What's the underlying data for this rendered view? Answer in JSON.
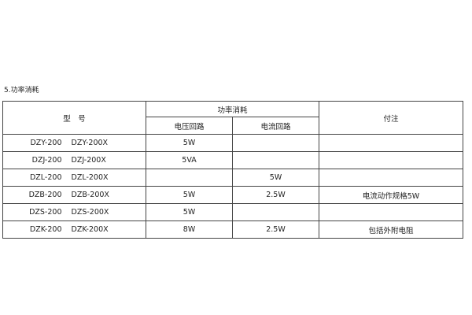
{
  "section_title": "5.功率消耗",
  "table": {
    "headers": {
      "model": "型　号",
      "power": "功率消耗",
      "voltage_circuit": "电压回路",
      "current_circuit": "电流回路",
      "remark": "付注"
    },
    "rows": [
      {
        "model_a": "DZY-200",
        "model_b": "DZY-200X",
        "voltage": "5W",
        "current": "",
        "remark": ""
      },
      {
        "model_a": "DZJ-200",
        "model_b": "DZJ-200X",
        "voltage": "5VA",
        "current": "",
        "remark": ""
      },
      {
        "model_a": "DZL-200",
        "model_b": "DZL-200X",
        "voltage": "",
        "current": "5W",
        "remark": ""
      },
      {
        "model_a": "DZB-200",
        "model_b": "DZB-200X",
        "voltage": "5W",
        "current": "2.5W",
        "remark": "电流动作规格5W"
      },
      {
        "model_a": "DZS-200",
        "model_b": "DZS-200X",
        "voltage": "5W",
        "current": "",
        "remark": ""
      },
      {
        "model_a": "DZK-200",
        "model_b": "DZK-200X",
        "voltage": "8W",
        "current": "2.5W",
        "remark": "包括外附电阻"
      }
    ]
  }
}
